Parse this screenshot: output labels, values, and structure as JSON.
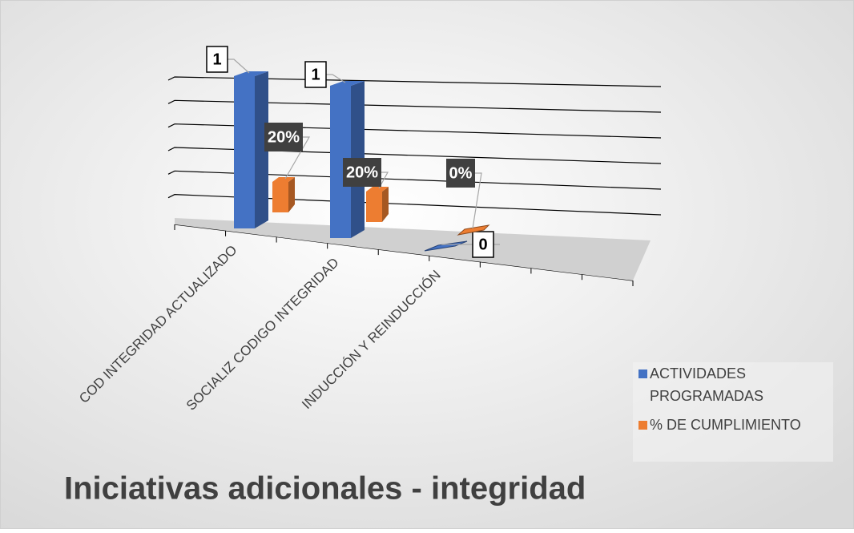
{
  "chart_data": {
    "type": "bar3d",
    "title": "Iniciativas adicionales - integridad",
    "categories": [
      "COD INTEGRIDAD ACTUALIZADO",
      "SOCIALIZ CODIGO INTEGRIDAD",
      "INDUCCIÓN Y REINDUCCIÓN"
    ],
    "series": [
      {
        "name": "ACTIVIDADES PROGRAMADAS",
        "color": "#4472c4",
        "values": [
          1,
          1,
          0
        ]
      },
      {
        "name": "% DE CUMPLIMIENTO",
        "color": "#ed7d31",
        "values": [
          0.2,
          0.2,
          0
        ],
        "value_labels": [
          "20%",
          "20%",
          "0%"
        ]
      }
    ],
    "ylim": [
      0,
      1.2
    ],
    "yticks": [
      0,
      0.2,
      0.4,
      0.6,
      0.8,
      1,
      1.2
    ],
    "grid": true,
    "legend": "right"
  }
}
